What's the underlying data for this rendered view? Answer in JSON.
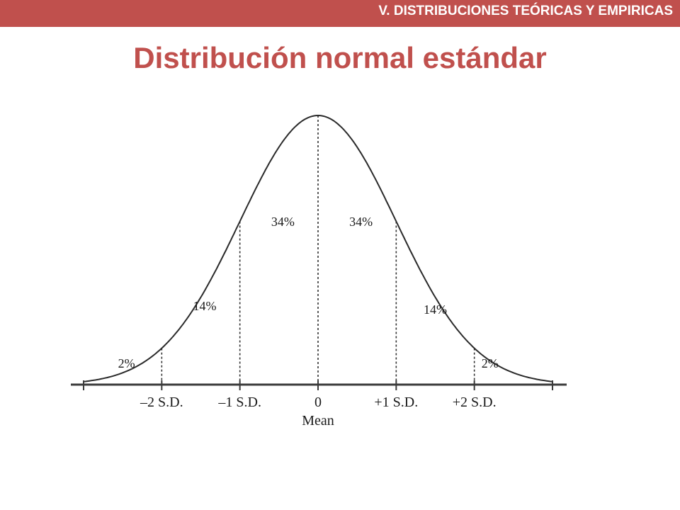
{
  "header": {
    "section_label": "V. DISTRIBUCIONES TEÓRICAS Y EMPIRICAS",
    "accent_color": "#c0504d"
  },
  "slide": {
    "title": "Distribución normal estándar"
  },
  "chart_data": {
    "type": "line",
    "series": [
      {
        "x": [
          -3,
          -2.5,
          -2,
          -1.5,
          -1,
          -0.5,
          0,
          0.5,
          1,
          1.5,
          2,
          2.5,
          3
        ],
        "y": [
          0.0044,
          0.0175,
          0.054,
          0.1295,
          0.242,
          0.3521,
          0.3989,
          0.3521,
          0.242,
          0.1295,
          0.054,
          0.0175,
          0.0044
        ]
      }
    ],
    "xlim": [
      -3,
      3
    ],
    "ylim": [
      0,
      0.4
    ],
    "grid": false,
    "tick_positions": [
      -3,
      -2,
      -1,
      0,
      1,
      2,
      3
    ],
    "tick_labels": [
      "",
      "–2 S.D.",
      "–1 S.D.",
      "0",
      "+1 S.D.",
      "+2 S.D.",
      ""
    ],
    "xlabel": "Mean",
    "reference_lines_x": [
      -2,
      -1,
      0,
      1,
      2
    ],
    "region_labels": [
      {
        "text": "2%",
        "x": -2.45,
        "y": 0.025
      },
      {
        "text": "14%",
        "x": -1.45,
        "y": 0.11
      },
      {
        "text": "34%",
        "x": -0.45,
        "y": 0.235
      },
      {
        "text": "34%",
        "x": 0.55,
        "y": 0.235
      },
      {
        "text": "14%",
        "x": 1.5,
        "y": 0.105
      },
      {
        "text": "2%",
        "x": 2.2,
        "y": 0.025
      }
    ]
  }
}
